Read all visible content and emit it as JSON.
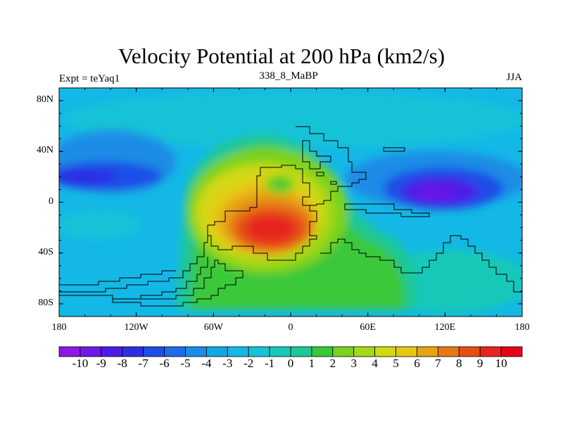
{
  "title": "Velocity Potential at 200 hPa (km2/s)",
  "left_label": "Expt = teYaq1",
  "center_label": "338_8_MaBP",
  "right_label": "JJA",
  "lat_ticks": [
    {
      "label": "80N",
      "value": 80
    },
    {
      "label": "40N",
      "value": 40
    },
    {
      "label": "0",
      "value": 0
    },
    {
      "label": "40S",
      "value": -40
    },
    {
      "label": "80S",
      "value": -80
    }
  ],
  "lon_ticks": [
    {
      "label": "180",
      "value": -180
    },
    {
      "label": "120W",
      "value": -120
    },
    {
      "label": "60W",
      "value": -60
    },
    {
      "label": "0",
      "value": 0
    },
    {
      "label": "60E",
      "value": 60
    },
    {
      "label": "120E",
      "value": 120
    },
    {
      "label": "180",
      "value": 180
    }
  ],
  "colorbar": {
    "labels": [
      "-10",
      "-9",
      "-8",
      "-7",
      "-6",
      "-5",
      "-4",
      "-3",
      "-2",
      "-1",
      "0",
      "1",
      "2",
      "3",
      "4",
      "5",
      "6",
      "7",
      "8",
      "9",
      "10"
    ],
    "colors": [
      "#8a19e6",
      "#6c19e6",
      "#4a1ee8",
      "#2c2ee6",
      "#1e4ee6",
      "#1f6ce6",
      "#1a8ce6",
      "#12a6e6",
      "#14b8e6",
      "#16c2d8",
      "#18c8b8",
      "#1cc896",
      "#3ac83a",
      "#7cd21e",
      "#a8d818",
      "#d2d812",
      "#e6c812",
      "#e6a412",
      "#e67a12",
      "#e64e12",
      "#e6261c",
      "#e6001a"
    ]
  }
}
